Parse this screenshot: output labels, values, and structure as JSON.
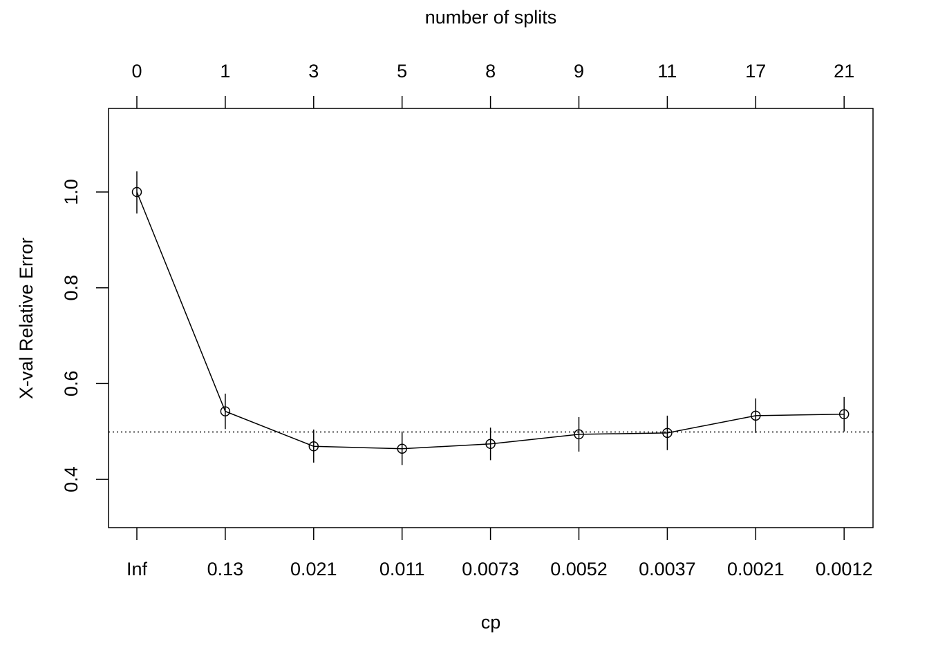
{
  "chart_data": {
    "type": "line",
    "xlabel": "cp",
    "ylabel": "X-val Relative Error",
    "top_axis_label": "number of splits",
    "categories": [
      "Inf",
      "0.13",
      "0.021",
      "0.011",
      "0.0073",
      "0.0052",
      "0.0037",
      "0.0021",
      "0.0012"
    ],
    "top_categories": [
      "0",
      "1",
      "3",
      "5",
      "8",
      "9",
      "11",
      "17",
      "21"
    ],
    "ylim": [
      0.3,
      1.18
    ],
    "yticks": [
      0.4,
      0.6,
      0.8,
      1.0
    ],
    "ytick_labels": [
      "0.4",
      "0.6",
      "0.8",
      "1.0"
    ],
    "reference_line": 0.499,
    "grid": false,
    "series": [
      {
        "values": [
          1.0,
          0.542,
          0.469,
          0.464,
          0.474,
          0.494,
          0.497,
          0.533,
          0.536
        ],
        "error_low": [
          0.955,
          0.505,
          0.435,
          0.43,
          0.44,
          0.458,
          0.461,
          0.497,
          0.5
        ],
        "error_high": [
          1.043,
          0.579,
          0.504,
          0.5,
          0.508,
          0.53,
          0.533,
          0.569,
          0.572
        ]
      }
    ]
  }
}
